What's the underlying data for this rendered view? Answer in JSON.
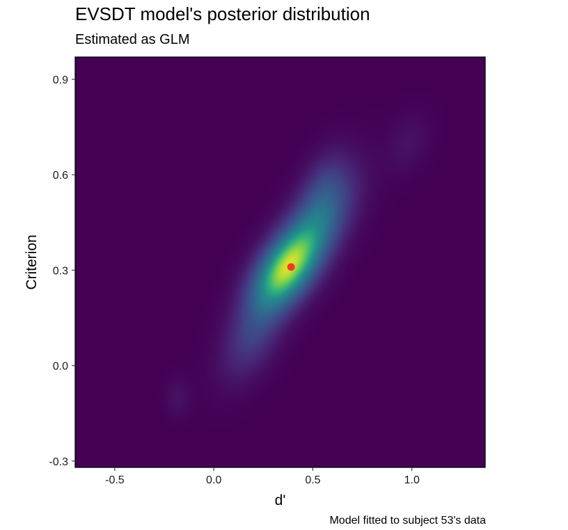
{
  "chart_data": {
    "type": "heatmap",
    "title": "EVSDT model's posterior distribution",
    "subtitle": "Estimated as GLM",
    "caption": "Model fitted to subject 53's data",
    "xlabel": "d'",
    "ylabel": "Criterion",
    "xlim": [
      -0.7,
      1.37
    ],
    "ylim": [
      -0.32,
      0.97
    ],
    "x_ticks": [
      -0.5,
      0.0,
      0.5,
      1.0
    ],
    "x_tick_labels": [
      "-0.5",
      "0.0",
      "0.5",
      "1.0"
    ],
    "y_ticks": [
      -0.3,
      0.0,
      0.3,
      0.6,
      0.9
    ],
    "y_tick_labels": [
      "-0.3",
      "0.0",
      "0.3",
      "0.6",
      "0.9"
    ],
    "grid": false,
    "colormap": "viridis",
    "background_color": "#3f1854",
    "density_components": [
      {
        "mean_x": 0.36,
        "mean_y": 0.3,
        "sd_x": 0.11,
        "sd_y": 0.085,
        "rho": 0.55,
        "weight": 1.0
      },
      {
        "mean_x": 0.5,
        "mean_y": 0.42,
        "sd_x": 0.13,
        "sd_y": 0.11,
        "rho": 0.65,
        "weight": 0.45
      },
      {
        "mean_x": 0.2,
        "mean_y": 0.1,
        "sd_x": 0.1,
        "sd_y": 0.09,
        "rho": 0.5,
        "weight": 0.22
      },
      {
        "mean_x": 0.55,
        "mean_y": 0.55,
        "sd_x": 0.08,
        "sd_y": 0.08,
        "rho": 0.4,
        "weight": 0.18
      },
      {
        "mean_x": 0.98,
        "mean_y": 0.7,
        "sd_x": 0.07,
        "sd_y": 0.06,
        "rho": 0.3,
        "weight": 0.05
      },
      {
        "mean_x": -0.18,
        "mean_y": -0.1,
        "sd_x": 0.04,
        "sd_y": 0.04,
        "rho": 0.0,
        "weight": 0.05
      }
    ],
    "point_estimate": {
      "x": 0.39,
      "y": 0.31,
      "color": "#ee3b2b"
    }
  }
}
